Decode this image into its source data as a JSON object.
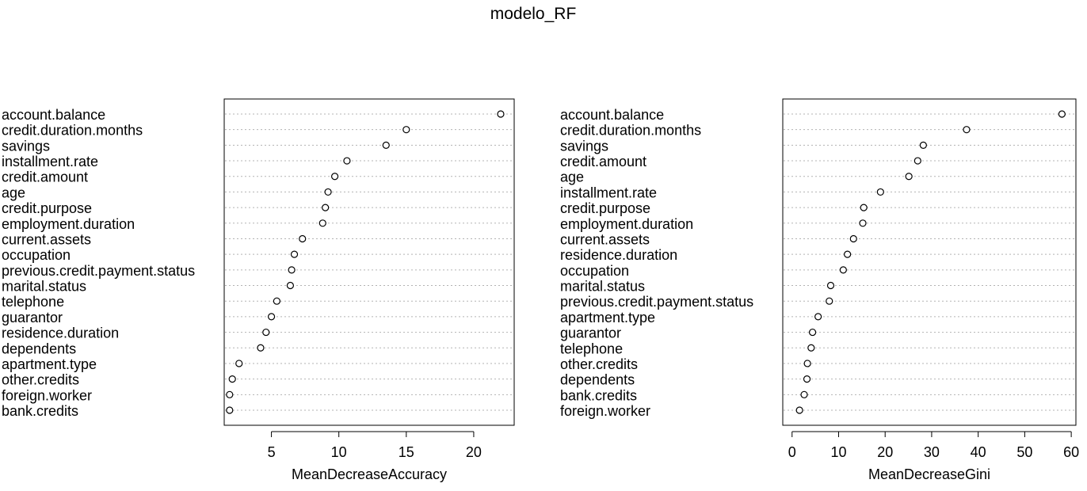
{
  "title": "modelo_RF",
  "chart_data": [
    {
      "type": "scatter",
      "variant": "dotchart",
      "xlabel": "MeanDecreaseAccuracy",
      "ylabel": "",
      "xlim": [
        1.5,
        23
      ],
      "xticks": [
        5,
        10,
        15,
        20
      ],
      "grid": "dotted horizontal",
      "categories": [
        "account.balance",
        "credit.duration.months",
        "savings",
        "installment.rate",
        "credit.amount",
        "age",
        "credit.purpose",
        "employment.duration",
        "current.assets",
        "occupation",
        "previous.credit.payment.status",
        "marital.status",
        "telephone",
        "guarantor",
        "residence.duration",
        "dependents",
        "apartment.type",
        "other.credits",
        "foreign.worker",
        "bank.credits"
      ],
      "values": [
        22.0,
        15.0,
        13.5,
        10.6,
        9.7,
        9.2,
        9.0,
        8.8,
        7.3,
        6.7,
        6.5,
        6.4,
        5.4,
        5.0,
        4.6,
        4.2,
        2.6,
        2.1,
        1.9,
        1.9
      ]
    },
    {
      "type": "scatter",
      "variant": "dotchart",
      "xlabel": "MeanDecreaseGini",
      "ylabel": "",
      "xlim": [
        -2,
        61
      ],
      "xticks": [
        0,
        10,
        20,
        30,
        40,
        50,
        60
      ],
      "grid": "dotted horizontal",
      "categories": [
        "account.balance",
        "credit.duration.months",
        "savings",
        "credit.amount",
        "age",
        "installment.rate",
        "credit.purpose",
        "employment.duration",
        "current.assets",
        "residence.duration",
        "occupation",
        "marital.status",
        "previous.credit.payment.status",
        "apartment.type",
        "guarantor",
        "telephone",
        "other.credits",
        "dependents",
        "bank.credits",
        "foreign.worker"
      ],
      "values": [
        58.0,
        37.5,
        28.2,
        27.0,
        25.1,
        19.0,
        15.4,
        15.2,
        13.2,
        11.9,
        11.0,
        8.3,
        8.0,
        5.6,
        4.4,
        4.1,
        3.3,
        3.2,
        2.6,
        1.6
      ]
    }
  ]
}
